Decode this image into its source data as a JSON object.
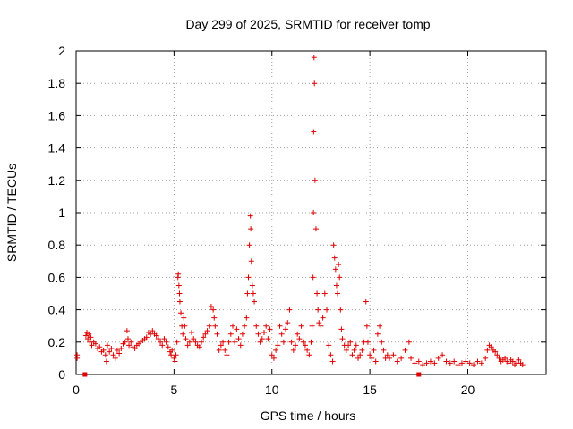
{
  "chart_data": {
    "type": "scatter",
    "title": "Day 299 of 2025, SRMTID for receiver tomp",
    "xlabel": "GPS time / hours",
    "ylabel": "SRMTID / TECUs",
    "xlim": [
      0,
      24
    ],
    "ylim": [
      0,
      2
    ],
    "xticks": [
      0,
      5,
      10,
      15,
      20
    ],
    "yticks": [
      0,
      0.2,
      0.4,
      0.6,
      0.8,
      1,
      1.2,
      1.4,
      1.6,
      1.8,
      2
    ],
    "grid": true,
    "marker": "+",
    "series_color": "#e00000",
    "gap_markers": [
      0.45,
      17.5
    ],
    "series": [
      {
        "name": "SRMTID",
        "points": [
          [
            0.05,
            0.12
          ],
          [
            0.05,
            0.1
          ],
          [
            0.5,
            0.24
          ],
          [
            0.55,
            0.26
          ],
          [
            0.6,
            0.22
          ],
          [
            0.65,
            0.25
          ],
          [
            0.7,
            0.2
          ],
          [
            0.75,
            0.23
          ],
          [
            0.8,
            0.18
          ],
          [
            0.9,
            0.2
          ],
          [
            1.0,
            0.19
          ],
          [
            1.1,
            0.16
          ],
          [
            1.2,
            0.17
          ],
          [
            1.3,
            0.14
          ],
          [
            1.4,
            0.15
          ],
          [
            1.5,
            0.12
          ],
          [
            1.55,
            0.08
          ],
          [
            1.6,
            0.18
          ],
          [
            1.7,
            0.14
          ],
          [
            1.8,
            0.16
          ],
          [
            1.9,
            0.12
          ],
          [
            2.0,
            0.1
          ],
          [
            2.1,
            0.15
          ],
          [
            2.2,
            0.13
          ],
          [
            2.3,
            0.16
          ],
          [
            2.4,
            0.19
          ],
          [
            2.5,
            0.2
          ],
          [
            2.6,
            0.27
          ],
          [
            2.65,
            0.22
          ],
          [
            2.7,
            0.18
          ],
          [
            2.8,
            0.2
          ],
          [
            2.9,
            0.17
          ],
          [
            3.0,
            0.16
          ],
          [
            3.1,
            0.18
          ],
          [
            3.2,
            0.19
          ],
          [
            3.3,
            0.2
          ],
          [
            3.4,
            0.21
          ],
          [
            3.5,
            0.22
          ],
          [
            3.6,
            0.23
          ],
          [
            3.7,
            0.26
          ],
          [
            3.8,
            0.25
          ],
          [
            3.9,
            0.27
          ],
          [
            4.0,
            0.25
          ],
          [
            4.1,
            0.24
          ],
          [
            4.2,
            0.22
          ],
          [
            4.3,
            0.2
          ],
          [
            4.4,
            0.18
          ],
          [
            4.5,
            0.22
          ],
          [
            4.6,
            0.2
          ],
          [
            4.7,
            0.17
          ],
          [
            4.8,
            0.14
          ],
          [
            4.85,
            0.12
          ],
          [
            4.9,
            0.15
          ],
          [
            5.0,
            0.1
          ],
          [
            5.05,
            0.08
          ],
          [
            5.1,
            0.12
          ],
          [
            5.15,
            0.2
          ],
          [
            5.2,
            0.6
          ],
          [
            5.22,
            0.62
          ],
          [
            5.25,
            0.55
          ],
          [
            5.28,
            0.5
          ],
          [
            5.3,
            0.45
          ],
          [
            5.35,
            0.38
          ],
          [
            5.4,
            0.3
          ],
          [
            5.45,
            0.25
          ],
          [
            5.5,
            0.35
          ],
          [
            5.55,
            0.3
          ],
          [
            5.6,
            0.22
          ],
          [
            5.7,
            0.18
          ],
          [
            5.8,
            0.2
          ],
          [
            5.9,
            0.26
          ],
          [
            6.0,
            0.22
          ],
          [
            6.1,
            0.2
          ],
          [
            6.2,
            0.18
          ],
          [
            6.3,
            0.17
          ],
          [
            6.4,
            0.2
          ],
          [
            6.5,
            0.23
          ],
          [
            6.6,
            0.25
          ],
          [
            6.7,
            0.27
          ],
          [
            6.8,
            0.3
          ],
          [
            6.9,
            0.42
          ],
          [
            7.0,
            0.4
          ],
          [
            7.05,
            0.35
          ],
          [
            7.1,
            0.3
          ],
          [
            7.2,
            0.25
          ],
          [
            7.3,
            0.15
          ],
          [
            7.4,
            0.18
          ],
          [
            7.5,
            0.2
          ],
          [
            7.6,
            0.15
          ],
          [
            7.7,
            0.12
          ],
          [
            7.8,
            0.2
          ],
          [
            7.9,
            0.25
          ],
          [
            8.0,
            0.3
          ],
          [
            8.1,
            0.2
          ],
          [
            8.2,
            0.28
          ],
          [
            8.3,
            0.22
          ],
          [
            8.4,
            0.18
          ],
          [
            8.5,
            0.25
          ],
          [
            8.6,
            0.3
          ],
          [
            8.7,
            0.35
          ],
          [
            8.75,
            0.5
          ],
          [
            8.8,
            0.6
          ],
          [
            8.85,
            0.8
          ],
          [
            8.9,
            0.98
          ],
          [
            8.92,
            0.9
          ],
          [
            8.95,
            0.7
          ],
          [
            9.0,
            0.55
          ],
          [
            9.05,
            0.5
          ],
          [
            9.1,
            0.45
          ],
          [
            9.2,
            0.3
          ],
          [
            9.3,
            0.25
          ],
          [
            9.4,
            0.2
          ],
          [
            9.5,
            0.22
          ],
          [
            9.6,
            0.26
          ],
          [
            9.7,
            0.3
          ],
          [
            9.8,
            0.22
          ],
          [
            9.9,
            0.28
          ],
          [
            10.0,
            0.12
          ],
          [
            10.1,
            0.1
          ],
          [
            10.2,
            0.15
          ],
          [
            10.3,
            0.18
          ],
          [
            10.4,
            0.3
          ],
          [
            10.5,
            0.25
          ],
          [
            10.6,
            0.2
          ],
          [
            10.7,
            0.28
          ],
          [
            10.8,
            0.32
          ],
          [
            10.9,
            0.4
          ],
          [
            11.0,
            0.2
          ],
          [
            11.1,
            0.15
          ],
          [
            11.2,
            0.18
          ],
          [
            11.3,
            0.25
          ],
          [
            11.4,
            0.22
          ],
          [
            11.5,
            0.3
          ],
          [
            11.6,
            0.2
          ],
          [
            11.7,
            0.18
          ],
          [
            11.8,
            0.15
          ],
          [
            11.9,
            0.12
          ],
          [
            12.0,
            0.2
          ],
          [
            12.05,
            0.3
          ],
          [
            12.1,
            0.6
          ],
          [
            12.12,
            1.0
          ],
          [
            12.13,
            1.5
          ],
          [
            12.15,
            1.96
          ],
          [
            12.17,
            1.8
          ],
          [
            12.2,
            1.2
          ],
          [
            12.25,
            0.9
          ],
          [
            12.3,
            0.5
          ],
          [
            12.35,
            0.4
          ],
          [
            12.4,
            0.32
          ],
          [
            12.5,
            0.3
          ],
          [
            12.6,
            0.35
          ],
          [
            12.7,
            0.5
          ],
          [
            12.8,
            0.4
          ],
          [
            12.9,
            0.18
          ],
          [
            13.0,
            0.12
          ],
          [
            13.1,
            0.08
          ],
          [
            13.15,
            0.8
          ],
          [
            13.2,
            0.72
          ],
          [
            13.25,
            0.65
          ],
          [
            13.3,
            0.55
          ],
          [
            13.35,
            0.5
          ],
          [
            13.4,
            0.68
          ],
          [
            13.45,
            0.6
          ],
          [
            13.5,
            0.4
          ],
          [
            13.55,
            0.28
          ],
          [
            13.6,
            0.22
          ],
          [
            13.7,
            0.18
          ],
          [
            13.8,
            0.15
          ],
          [
            13.9,
            0.18
          ],
          [
            14.0,
            0.2
          ],
          [
            14.1,
            0.12
          ],
          [
            14.2,
            0.15
          ],
          [
            14.3,
            0.18
          ],
          [
            14.4,
            0.1
          ],
          [
            14.5,
            0.12
          ],
          [
            14.6,
            0.15
          ],
          [
            14.7,
            0.2
          ],
          [
            14.8,
            0.45
          ],
          [
            14.85,
            0.3
          ],
          [
            14.9,
            0.2
          ],
          [
            15.0,
            0.12
          ],
          [
            15.1,
            0.1
          ],
          [
            15.2,
            0.15
          ],
          [
            15.3,
            0.08
          ],
          [
            15.4,
            0.25
          ],
          [
            15.5,
            0.3
          ],
          [
            15.6,
            0.2
          ],
          [
            15.7,
            0.15
          ],
          [
            15.8,
            0.1
          ],
          [
            15.9,
            0.12
          ],
          [
            16.0,
            0.1
          ],
          [
            16.2,
            0.12
          ],
          [
            16.4,
            0.08
          ],
          [
            16.6,
            0.1
          ],
          [
            16.8,
            0.15
          ],
          [
            17.0,
            0.2
          ],
          [
            17.1,
            0.1
          ],
          [
            17.3,
            0.07
          ],
          [
            17.5,
            0.08
          ],
          [
            17.7,
            0.06
          ],
          [
            17.9,
            0.07
          ],
          [
            18.1,
            0.08
          ],
          [
            18.3,
            0.07
          ],
          [
            18.5,
            0.1
          ],
          [
            18.7,
            0.12
          ],
          [
            18.9,
            0.08
          ],
          [
            19.1,
            0.07
          ],
          [
            19.3,
            0.08
          ],
          [
            19.5,
            0.06
          ],
          [
            19.7,
            0.07
          ],
          [
            19.9,
            0.08
          ],
          [
            20.1,
            0.07
          ],
          [
            20.3,
            0.06
          ],
          [
            20.5,
            0.08
          ],
          [
            20.7,
            0.07
          ],
          [
            20.9,
            0.1
          ],
          [
            21.0,
            0.15
          ],
          [
            21.1,
            0.18
          ],
          [
            21.2,
            0.17
          ],
          [
            21.3,
            0.15
          ],
          [
            21.4,
            0.14
          ],
          [
            21.5,
            0.12
          ],
          [
            21.6,
            0.1
          ],
          [
            21.7,
            0.08
          ],
          [
            21.8,
            0.09
          ],
          [
            21.9,
            0.1
          ],
          [
            22.0,
            0.08
          ],
          [
            22.1,
            0.07
          ],
          [
            22.2,
            0.09
          ],
          [
            22.3,
            0.08
          ],
          [
            22.4,
            0.06
          ],
          [
            22.5,
            0.07
          ],
          [
            22.6,
            0.09
          ],
          [
            22.7,
            0.07
          ],
          [
            22.8,
            0.06
          ]
        ]
      }
    ]
  }
}
